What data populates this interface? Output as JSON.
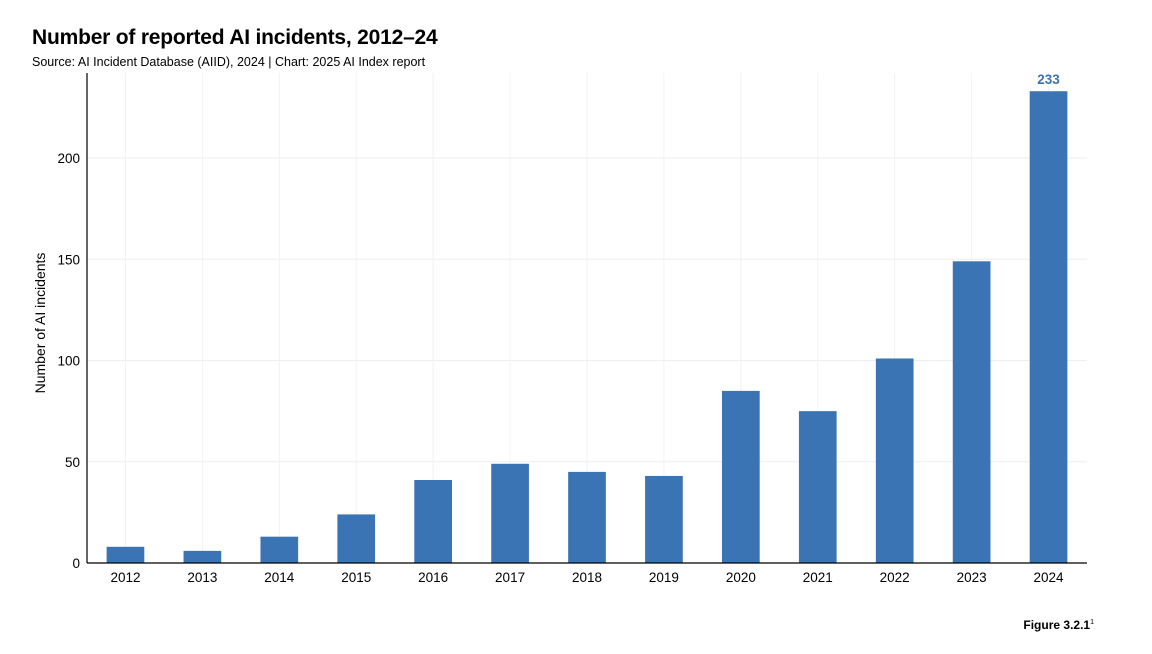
{
  "chart_data": {
    "type": "bar",
    "title": "Number of reported AI incidents, 2012–24",
    "subtitle": "Source: AI Incident Database (AIID), 2024 | Chart: 2025 AI Index report",
    "xlabel": "",
    "ylabel": "Number of AI incidents",
    "categories": [
      "2012",
      "2013",
      "2014",
      "2015",
      "2016",
      "2017",
      "2018",
      "2019",
      "2020",
      "2021",
      "2022",
      "2023",
      "2024"
    ],
    "values": [
      8,
      6,
      13,
      24,
      41,
      49,
      45,
      43,
      85,
      75,
      101,
      149,
      233
    ],
    "ylim": [
      0,
      242
    ],
    "yticks": [
      0,
      50,
      100,
      150,
      200
    ],
    "grid": true,
    "bar_color": "#3b74b4",
    "data_labels": [
      {
        "category": "2024",
        "text": "233"
      }
    ]
  },
  "figure_label": {
    "text": "Figure 3.2.1",
    "footnote": "1"
  }
}
